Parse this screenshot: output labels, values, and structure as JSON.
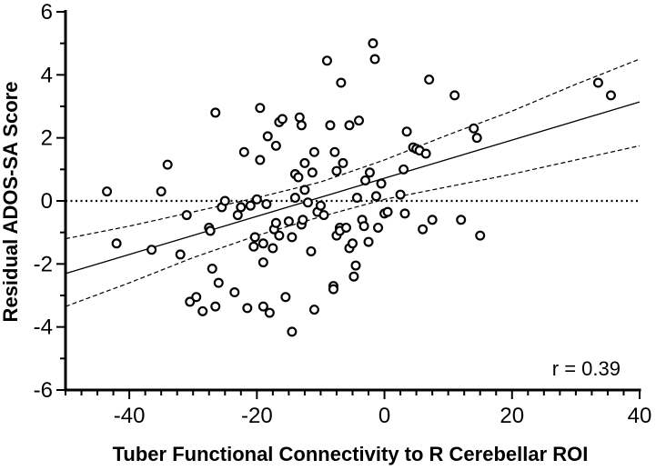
{
  "chart_data": {
    "type": "scatter",
    "xlabel": "Tuber Functional Connectivity to R Cerebellar ROI",
    "ylabel": "Residual ADOS-SA Score",
    "xlim": [
      -50,
      40
    ],
    "ylim": [
      -6,
      6
    ],
    "x_ticks": [
      "-40",
      "-20",
      "0",
      "20",
      "40"
    ],
    "y_ticks": [
      "-6",
      "-4",
      "-2",
      "0",
      "2",
      "4",
      "6"
    ],
    "annotation": "r = 0.39",
    "reference_line": {
      "y": 0,
      "style": "dotted"
    },
    "regression": {
      "slope": 0.0605,
      "intercept": 0.72,
      "style": "solid"
    },
    "confidence_band": {
      "upper": [
        [
          -50,
          -1.2
        ],
        [
          -40,
          -0.8
        ],
        [
          -30,
          -0.35
        ],
        [
          -20,
          0.1
        ],
        [
          -10,
          0.6
        ],
        [
          0,
          1.3
        ],
        [
          10,
          2.1
        ],
        [
          20,
          2.85
        ],
        [
          30,
          3.7
        ],
        [
          40,
          4.5
        ]
      ],
      "lower": [
        [
          -50,
          -3.35
        ],
        [
          -40,
          -2.6
        ],
        [
          -30,
          -1.8
        ],
        [
          -20,
          -1.1
        ],
        [
          -10,
          -0.5
        ],
        [
          0,
          0.05
        ],
        [
          10,
          0.45
        ],
        [
          20,
          0.85
        ],
        [
          30,
          1.3
        ],
        [
          40,
          1.75
        ]
      ],
      "style": "dashed"
    },
    "points": [
      [
        -43.5,
        0.3
      ],
      [
        -42,
        -1.35
      ],
      [
        -36.5,
        -1.55
      ],
      [
        -35,
        0.3
      ],
      [
        -34,
        1.15
      ],
      [
        -32,
        -1.7
      ],
      [
        -31,
        -0.45
      ],
      [
        -30.5,
        -3.2
      ],
      [
        -29.5,
        -3.05
      ],
      [
        -28.5,
        -3.5
      ],
      [
        -27.5,
        -0.85
      ],
      [
        -27.3,
        -0.95
      ],
      [
        -27,
        -2.15
      ],
      [
        -26.5,
        -3.35
      ],
      [
        -26.5,
        2.8
      ],
      [
        -26,
        -2.6
      ],
      [
        -25.5,
        -0.2
      ],
      [
        -25,
        0
      ],
      [
        -23.5,
        -2.9
      ],
      [
        -23,
        -0.45
      ],
      [
        -22.5,
        -0.2
      ],
      [
        -22,
        1.55
      ],
      [
        -21.5,
        -3.4
      ],
      [
        -21,
        -0.15
      ],
      [
        -20.5,
        -1.45
      ],
      [
        -20.3,
        -1.15
      ],
      [
        -20,
        0.05
      ],
      [
        -19.5,
        2.95
      ],
      [
        -19.5,
        1.3
      ],
      [
        -19,
        -1.95
      ],
      [
        -19,
        -1.35
      ],
      [
        -19,
        -3.35
      ],
      [
        -18.5,
        -0.1
      ],
      [
        -18.3,
        2.05
      ],
      [
        -18,
        -3.55
      ],
      [
        -17.5,
        -1.5
      ],
      [
        -17.3,
        -0.9
      ],
      [
        -17,
        -0.7
      ],
      [
        -17,
        1.75
      ],
      [
        -16.5,
        -1.1
      ],
      [
        -16.5,
        2.5
      ],
      [
        -16,
        2.6
      ],
      [
        -15.5,
        -3.05
      ],
      [
        -15,
        -0.65
      ],
      [
        -14.5,
        -1.15
      ],
      [
        -14.5,
        -4.15
      ],
      [
        -14,
        0.1
      ],
      [
        -14,
        0.85
      ],
      [
        -13.5,
        0.75
      ],
      [
        -13.3,
        2.65
      ],
      [
        -13,
        2.4
      ],
      [
        -13,
        -0.75
      ],
      [
        -12.8,
        -0.6
      ],
      [
        -12.5,
        0.35
      ],
      [
        -12.5,
        1.2
      ],
      [
        -12,
        -0.05
      ],
      [
        -11.5,
        -1.6
      ],
      [
        -11.3,
        0.9
      ],
      [
        -11,
        1.55
      ],
      [
        -11,
        -3.45
      ],
      [
        -10.5,
        -0.35
      ],
      [
        -10,
        -0.15
      ],
      [
        -9.5,
        -0.45
      ],
      [
        -9,
        4.45
      ],
      [
        -8.5,
        2.4
      ],
      [
        -8,
        -2.7
      ],
      [
        -8,
        -2.8
      ],
      [
        -7.8,
        1.55
      ],
      [
        -7.5,
        -1.1
      ],
      [
        -7.5,
        0.95
      ],
      [
        -7,
        -0.85
      ],
      [
        -7,
        -0.95
      ],
      [
        -6.8,
        3.75
      ],
      [
        -6.5,
        1.2
      ],
      [
        -6,
        -0.85
      ],
      [
        -5.5,
        -1.5
      ],
      [
        -5.5,
        2.4
      ],
      [
        -5,
        -1.35
      ],
      [
        -4.8,
        -2.4
      ],
      [
        -4.5,
        -2.05
      ],
      [
        -4.3,
        0.1
      ],
      [
        -4,
        2.55
      ],
      [
        -3.5,
        -0.6
      ],
      [
        -3.2,
        -0.8
      ],
      [
        -3,
        0.65
      ],
      [
        -2.5,
        -1.3
      ],
      [
        -2.3,
        0.9
      ],
      [
        -1.8,
        5.0
      ],
      [
        -1.5,
        4.5
      ],
      [
        -1.3,
        0.15
      ],
      [
        -1,
        -0.85
      ],
      [
        -0.5,
        0.55
      ],
      [
        0,
        -0.4
      ],
      [
        0.5,
        -0.35
      ],
      [
        2.5,
        0.2
      ],
      [
        3,
        1.0
      ],
      [
        3.2,
        -0.4
      ],
      [
        3.5,
        2.2
      ],
      [
        4.5,
        1.7
      ],
      [
        5,
        1.65
      ],
      [
        5.5,
        1.6
      ],
      [
        6,
        -0.9
      ],
      [
        6.5,
        1.5
      ],
      [
        7,
        3.85
      ],
      [
        7.5,
        -0.6
      ],
      [
        11,
        3.35
      ],
      [
        12,
        -0.6
      ],
      [
        14,
        2.3
      ],
      [
        14.5,
        2.0
      ],
      [
        15,
        -1.1
      ],
      [
        33.5,
        3.75
      ],
      [
        35.5,
        3.35
      ]
    ]
  }
}
